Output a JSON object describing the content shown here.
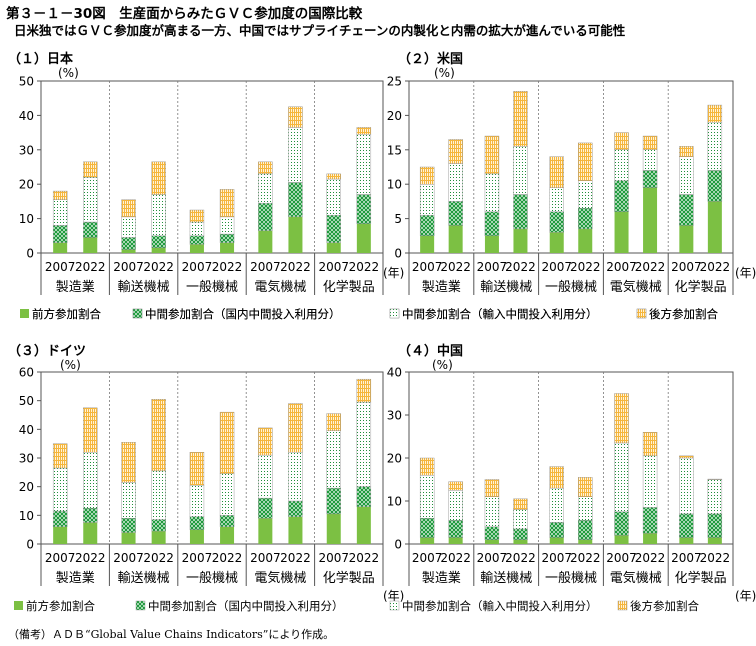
{
  "figure": {
    "title": "第３－１－30図　生産面からみたＧＶＣ参加度の国際比較",
    "subtitle": "日米独ではＧＶＣ参加度が高まる一方、中国ではサプライチェーンの内製化と内需の拡大が進んでいる可能性",
    "note": "（備考）ＡＤＢ“Global Value Chains Indicators”により作成。"
  },
  "colors": {
    "forward": "#7cc043",
    "domestic_middle": "#1e9a3c",
    "import_middle": "#1f8f3a",
    "backward": "#f5b63c",
    "frame": "#555555"
  },
  "chart_data": [
    {
      "type": "bar",
      "stacked": true,
      "title": "（１）日本",
      "ylabel": "(%)",
      "xlabel": "(年)",
      "ylim": [
        0,
        50
      ],
      "yticks": [
        0,
        10,
        20,
        30,
        40,
        50
      ],
      "years": [
        "2007",
        "2022"
      ],
      "groups": [
        "製造業",
        "輸送機械",
        "一般機械",
        "電気機械",
        "化学製品"
      ],
      "series": [
        {
          "name": "前方参加割合",
          "values": [
            3,
            4.5,
            1,
            1.5,
            2.5,
            3,
            6.5,
            10.5,
            3,
            8.5
          ]
        },
        {
          "name": "中間参加割合（国内中間投入利用分）",
          "values": [
            5,
            4.5,
            3.5,
            3.5,
            2.5,
            2.5,
            8,
            10,
            8,
            8.5
          ]
        },
        {
          "name": "中間参加割合（輸入中間投入利用分）",
          "values": [
            7.5,
            13,
            6,
            12,
            4,
            5,
            8.5,
            16,
            10.5,
            17.5
          ]
        },
        {
          "name": "後方参加割合",
          "values": [
            2.5,
            4.5,
            5,
            9.5,
            3.5,
            8,
            3.5,
            6,
            1.5,
            2
          ]
        }
      ]
    },
    {
      "type": "bar",
      "stacked": true,
      "title": "（２）米国",
      "ylabel": "(%)",
      "xlabel": "(年)",
      "ylim": [
        0,
        25
      ],
      "yticks": [
        0,
        5,
        10,
        15,
        20,
        25
      ],
      "years": [
        "2007",
        "2022"
      ],
      "groups": [
        "製造業",
        "輸送機械",
        "一般機械",
        "電気機械",
        "化学製品"
      ],
      "series": [
        {
          "name": "前方参加割合",
          "values": [
            2.5,
            4,
            2.5,
            3.5,
            3,
            3.5,
            6,
            9.5,
            4,
            7.5
          ]
        },
        {
          "name": "中間参加割合（国内中間投入利用分）",
          "values": [
            3,
            3.5,
            3.5,
            5,
            3,
            3,
            4.5,
            2.5,
            4.5,
            4.5
          ]
        },
        {
          "name": "中間参加割合（輸入中間投入利用分）",
          "values": [
            4.5,
            5.5,
            5.5,
            7,
            3.5,
            4,
            4.5,
            3,
            5.5,
            7
          ]
        },
        {
          "name": "後方参加割合",
          "values": [
            2.5,
            3.5,
            5.5,
            8,
            4.5,
            5.5,
            2.5,
            2,
            1.5,
            2.5
          ]
        }
      ]
    },
    {
      "type": "bar",
      "stacked": true,
      "title": "（３）ドイツ",
      "ylabel": "(%)",
      "xlabel": "(年)",
      "ylim": [
        0,
        60
      ],
      "yticks": [
        0,
        10,
        20,
        30,
        40,
        50,
        60
      ],
      "years": [
        "2007",
        "2022"
      ],
      "groups": [
        "製造業",
        "輸送機械",
        "一般機械",
        "電気機械",
        "化学製品"
      ],
      "series": [
        {
          "name": "前方参加割合",
          "values": [
            6,
            7.5,
            4,
            4.5,
            5,
            6,
            9,
            9.5,
            10.5,
            13
          ]
        },
        {
          "name": "中間参加割合（国内中間投入利用分）",
          "values": [
            5.5,
            5,
            5,
            4,
            4.5,
            4,
            7,
            5.5,
            9,
            7
          ]
        },
        {
          "name": "中間参加割合（輸入中間投入利用分）",
          "values": [
            15,
            19.5,
            12.5,
            17,
            11,
            14.5,
            15,
            17,
            20,
            29.5
          ]
        },
        {
          "name": "後方参加割合",
          "values": [
            8.5,
            15.5,
            14,
            25,
            11.5,
            21.5,
            9.5,
            17,
            6,
            8
          ]
        }
      ]
    },
    {
      "type": "bar",
      "stacked": true,
      "title": "（４）中国",
      "ylabel": "(%)",
      "xlabel": "(年)",
      "ylim": [
        0,
        40
      ],
      "yticks": [
        0,
        10,
        20,
        30,
        40
      ],
      "years": [
        "2007",
        "2022"
      ],
      "groups": [
        "製造業",
        "輸送機械",
        "一般機械",
        "電気機械",
        "化学製品"
      ],
      "series": [
        {
          "name": "前方参加割合",
          "values": [
            1.5,
            1.5,
            1,
            1,
            1.5,
            1,
            2,
            2.5,
            1.5,
            1.5
          ]
        },
        {
          "name": "中間参加割合（国内中間投入利用分）",
          "values": [
            4.5,
            4,
            3,
            2.5,
            3.5,
            4.5,
            5.5,
            6,
            5.5,
            5.5
          ]
        },
        {
          "name": "中間参加割合（輸入中間投入利用分）",
          "values": [
            10,
            7,
            7,
            4.5,
            8,
            5.5,
            16,
            12,
            13,
            8
          ]
        },
        {
          "name": "後方参加割合",
          "values": [
            4,
            2,
            4,
            2.5,
            5,
            4.5,
            11.5,
            5.5,
            0.5,
            0.1
          ]
        }
      ]
    }
  ]
}
